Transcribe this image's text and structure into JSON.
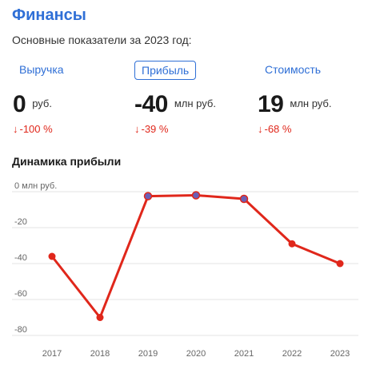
{
  "header": {
    "title": "Финансы",
    "subtitle": "Основные показатели за 2023 год:"
  },
  "tabs": [
    {
      "label": "Выручка",
      "active": false
    },
    {
      "label": "Прибыль",
      "active": true
    },
    {
      "label": "Стоимость",
      "active": false
    }
  ],
  "metrics": [
    {
      "value": "0",
      "unit": "руб.",
      "change": "-100 %",
      "arrow": "↓"
    },
    {
      "value": "-40",
      "unit": "млн руб.",
      "change": "-39 %",
      "arrow": "↓"
    },
    {
      "value": "19",
      "unit": "млн руб.",
      "change": "-68 %",
      "arrow": "↓"
    }
  ],
  "chart_title": "Динамика прибыли",
  "colors": {
    "accent": "#2f6fd6",
    "line": "#e0271b",
    "negative": "#e0271b",
    "marker_small": "#6b5fb5"
  },
  "chart_data": {
    "type": "line",
    "x": [
      "2017",
      "2018",
      "2019",
      "2020",
      "2021",
      "2022",
      "2023"
    ],
    "series": [
      {
        "values": [
          -36,
          -70,
          -2.5,
          -2,
          -4,
          -29,
          -40
        ]
      }
    ],
    "yticks": [
      0,
      -20,
      -40,
      -60,
      -80
    ],
    "ytick_labels": [
      "0 млн руб.",
      "-20",
      "-40",
      "-60",
      "-80"
    ],
    "ylim": [
      -80,
      0
    ],
    "grid": true
  }
}
